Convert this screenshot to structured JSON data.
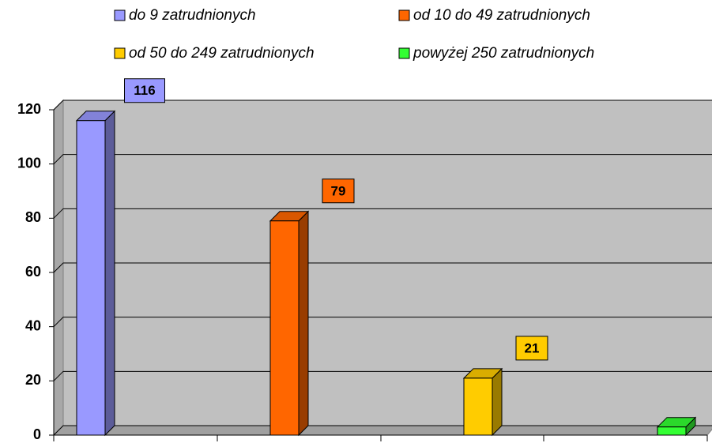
{
  "chart_data": {
    "type": "bar",
    "series": [
      {
        "name": "do 9 zatrudnionych",
        "color": "#9999ff",
        "values": [
          116
        ]
      },
      {
        "name": "od 10 do 49 zatrudnionych",
        "color": "#ff6600",
        "values": [
          79
        ]
      },
      {
        "name": "od 50 do 249 zatrudnionych",
        "color": "#ffcc00",
        "values": [
          21
        ]
      },
      {
        "name": "powyżej 250 zatrudnionych",
        "color": "#33ff33",
        "values": [
          3
        ]
      }
    ],
    "ylim": [
      0,
      120
    ],
    "yticks": [
      0,
      20,
      40,
      60,
      80,
      100,
      120
    ],
    "grid": true
  }
}
